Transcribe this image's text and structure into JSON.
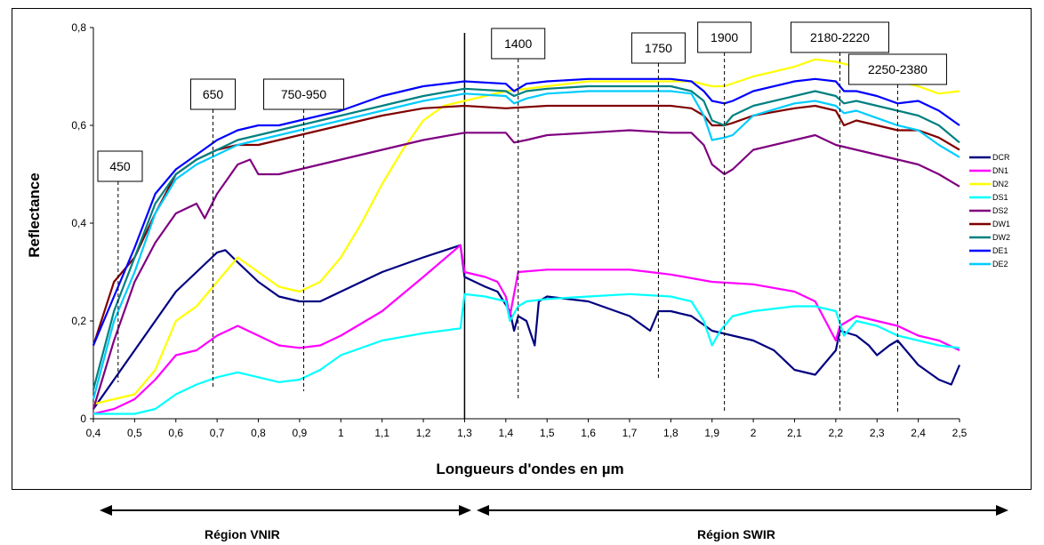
{
  "chart_data": {
    "type": "line",
    "xlabel": "Longueurs d'ondes en µm",
    "ylabel": "Reflectance",
    "xlim": [
      0.4,
      2.5
    ],
    "ylim": [
      0,
      0.8
    ],
    "x_ticks": [
      "0,4",
      "0,5",
      "0,6",
      "0,7",
      "0,8",
      "0,9",
      "1",
      "1,1",
      "1,2",
      "1,3",
      "1,4",
      "1,5",
      "1,6",
      "1,7",
      "1,8",
      "1,9",
      "2",
      "2,1",
      "2,2",
      "2,3",
      "2,4",
      "2,5"
    ],
    "y_ticks": [
      "0",
      "0,2",
      "0,4",
      "0,6",
      "0,8"
    ],
    "grid": false,
    "legend_position": "right",
    "annotations": [
      {
        "label": "450",
        "x": 0.46
      },
      {
        "label": "650",
        "x": 0.69
      },
      {
        "label": "750-950",
        "x": 0.91
      },
      {
        "label": "1400",
        "x": 1.43
      },
      {
        "label": "1750",
        "x": 1.77
      },
      {
        "label": "1900",
        "x": 1.93
      },
      {
        "label": "2180-2220",
        "x": 2.21
      },
      {
        "label": "2250-2380",
        "x": 2.35
      }
    ],
    "divider_x": 1.3,
    "series": [
      {
        "name": "DCR",
        "color": "#000080",
        "x": [
          0.4,
          0.45,
          0.5,
          0.55,
          0.6,
          0.65,
          0.7,
          0.72,
          0.75,
          0.8,
          0.85,
          0.9,
          0.95,
          1.0,
          1.1,
          1.2,
          1.29,
          1.3,
          1.35,
          1.38,
          1.41,
          1.42,
          1.43,
          1.45,
          1.47,
          1.48,
          1.5,
          1.6,
          1.7,
          1.75,
          1.77,
          1.8,
          1.85,
          1.9,
          1.95,
          2.0,
          2.05,
          2.1,
          2.15,
          2.2,
          2.21,
          2.25,
          2.28,
          2.3,
          2.33,
          2.35,
          2.4,
          2.45,
          2.48,
          2.5
        ],
        "y": [
          0.02,
          0.08,
          0.14,
          0.2,
          0.26,
          0.3,
          0.34,
          0.345,
          0.32,
          0.28,
          0.25,
          0.24,
          0.24,
          0.26,
          0.3,
          0.33,
          0.355,
          0.29,
          0.27,
          0.26,
          0.22,
          0.18,
          0.21,
          0.2,
          0.15,
          0.24,
          0.25,
          0.24,
          0.21,
          0.18,
          0.22,
          0.22,
          0.21,
          0.18,
          0.17,
          0.16,
          0.14,
          0.1,
          0.09,
          0.14,
          0.18,
          0.17,
          0.15,
          0.13,
          0.15,
          0.16,
          0.11,
          0.08,
          0.07,
          0.11
        ]
      },
      {
        "name": "DN1",
        "color": "#ff00ff",
        "x": [
          0.4,
          0.45,
          0.5,
          0.55,
          0.6,
          0.65,
          0.7,
          0.75,
          0.8,
          0.85,
          0.9,
          0.95,
          1.0,
          1.1,
          1.2,
          1.29,
          1.3,
          1.35,
          1.38,
          1.4,
          1.41,
          1.43,
          1.5,
          1.6,
          1.7,
          1.75,
          1.8,
          1.9,
          2.0,
          2.1,
          2.15,
          2.2,
          2.21,
          2.25,
          2.3,
          2.35,
          2.4,
          2.45,
          2.5
        ],
        "y": [
          0.01,
          0.02,
          0.04,
          0.08,
          0.13,
          0.14,
          0.17,
          0.19,
          0.17,
          0.15,
          0.145,
          0.15,
          0.17,
          0.22,
          0.29,
          0.355,
          0.3,
          0.29,
          0.28,
          0.25,
          0.21,
          0.3,
          0.305,
          0.305,
          0.305,
          0.3,
          0.295,
          0.28,
          0.275,
          0.26,
          0.24,
          0.16,
          0.19,
          0.21,
          0.2,
          0.19,
          0.17,
          0.16,
          0.14
        ]
      },
      {
        "name": "DN2",
        "color": "#ffff00",
        "x": [
          0.4,
          0.45,
          0.5,
          0.55,
          0.6,
          0.65,
          0.7,
          0.75,
          0.8,
          0.85,
          0.9,
          0.95,
          1.0,
          1.05,
          1.1,
          1.15,
          1.2,
          1.25,
          1.3,
          1.35,
          1.4,
          1.5,
          1.6,
          1.7,
          1.8,
          1.85,
          1.9,
          1.93,
          2.0,
          2.1,
          2.15,
          2.2,
          2.25,
          2.3,
          2.35,
          2.4,
          2.45,
          2.5
        ],
        "y": [
          0.03,
          0.04,
          0.05,
          0.1,
          0.2,
          0.23,
          0.28,
          0.33,
          0.3,
          0.27,
          0.26,
          0.28,
          0.33,
          0.4,
          0.48,
          0.55,
          0.61,
          0.64,
          0.65,
          0.66,
          0.67,
          0.68,
          0.69,
          0.69,
          0.69,
          0.69,
          0.68,
          0.68,
          0.7,
          0.72,
          0.735,
          0.73,
          0.72,
          0.71,
          0.69,
          0.68,
          0.665,
          0.67
        ]
      },
      {
        "name": "DS1",
        "color": "#00ffff",
        "x": [
          0.4,
          0.45,
          0.5,
          0.55,
          0.6,
          0.65,
          0.7,
          0.75,
          0.8,
          0.85,
          0.9,
          0.95,
          1.0,
          1.1,
          1.2,
          1.29,
          1.3,
          1.35,
          1.4,
          1.41,
          1.43,
          1.45,
          1.5,
          1.6,
          1.7,
          1.8,
          1.85,
          1.88,
          1.9,
          1.92,
          1.95,
          2.0,
          2.1,
          2.15,
          2.2,
          2.22,
          2.25,
          2.3,
          2.35,
          2.4,
          2.45,
          2.5
        ],
        "y": [
          0.01,
          0.01,
          0.01,
          0.02,
          0.05,
          0.07,
          0.085,
          0.095,
          0.085,
          0.075,
          0.08,
          0.1,
          0.13,
          0.16,
          0.175,
          0.185,
          0.255,
          0.25,
          0.24,
          0.2,
          0.23,
          0.24,
          0.245,
          0.25,
          0.255,
          0.25,
          0.24,
          0.2,
          0.15,
          0.18,
          0.21,
          0.22,
          0.23,
          0.23,
          0.22,
          0.17,
          0.2,
          0.19,
          0.17,
          0.16,
          0.15,
          0.145
        ]
      },
      {
        "name": "DS2",
        "color": "#800080",
        "x": [
          0.4,
          0.45,
          0.5,
          0.55,
          0.6,
          0.65,
          0.67,
          0.7,
          0.75,
          0.78,
          0.8,
          0.85,
          0.9,
          1.0,
          1.1,
          1.2,
          1.3,
          1.35,
          1.4,
          1.42,
          1.45,
          1.5,
          1.6,
          1.7,
          1.8,
          1.85,
          1.88,
          1.9,
          1.93,
          1.95,
          2.0,
          2.1,
          2.15,
          2.2,
          2.25,
          2.3,
          2.35,
          2.4,
          2.45,
          2.5
        ],
        "y": [
          0.02,
          0.16,
          0.28,
          0.36,
          0.42,
          0.44,
          0.41,
          0.46,
          0.52,
          0.53,
          0.5,
          0.5,
          0.51,
          0.53,
          0.55,
          0.57,
          0.585,
          0.585,
          0.585,
          0.565,
          0.57,
          0.58,
          0.585,
          0.59,
          0.585,
          0.585,
          0.56,
          0.52,
          0.5,
          0.51,
          0.55,
          0.57,
          0.58,
          0.56,
          0.55,
          0.54,
          0.53,
          0.52,
          0.5,
          0.475
        ]
      },
      {
        "name": "DW1",
        "color": "#800000",
        "x": [
          0.4,
          0.45,
          0.5,
          0.55,
          0.6,
          0.65,
          0.7,
          0.75,
          0.8,
          0.85,
          0.9,
          1.0,
          1.1,
          1.2,
          1.3,
          1.4,
          1.5,
          1.6,
          1.7,
          1.8,
          1.85,
          1.88,
          1.9,
          1.93,
          1.95,
          2.0,
          2.1,
          2.15,
          2.2,
          2.22,
          2.25,
          2.3,
          2.35,
          2.4,
          2.45,
          2.5
        ],
        "y": [
          0.15,
          0.28,
          0.33,
          0.42,
          0.5,
          0.53,
          0.55,
          0.56,
          0.56,
          0.57,
          0.58,
          0.6,
          0.62,
          0.635,
          0.64,
          0.635,
          0.64,
          0.64,
          0.64,
          0.64,
          0.635,
          0.62,
          0.6,
          0.6,
          0.605,
          0.62,
          0.635,
          0.64,
          0.63,
          0.6,
          0.61,
          0.6,
          0.59,
          0.59,
          0.575,
          0.55
        ]
      },
      {
        "name": "DW2",
        "color": "#008080",
        "x": [
          0.4,
          0.45,
          0.5,
          0.55,
          0.6,
          0.65,
          0.7,
          0.75,
          0.8,
          0.85,
          0.9,
          1.0,
          1.1,
          1.2,
          1.3,
          1.4,
          1.42,
          1.45,
          1.5,
          1.6,
          1.7,
          1.8,
          1.85,
          1.88,
          1.9,
          1.93,
          1.95,
          2.0,
          2.1,
          2.15,
          2.2,
          2.22,
          2.25,
          2.3,
          2.35,
          2.4,
          2.45,
          2.5
        ],
        "y": [
          0.06,
          0.22,
          0.33,
          0.44,
          0.5,
          0.53,
          0.55,
          0.57,
          0.58,
          0.59,
          0.6,
          0.62,
          0.64,
          0.66,
          0.675,
          0.67,
          0.66,
          0.67,
          0.675,
          0.68,
          0.68,
          0.68,
          0.67,
          0.65,
          0.61,
          0.6,
          0.62,
          0.64,
          0.66,
          0.67,
          0.66,
          0.645,
          0.65,
          0.64,
          0.63,
          0.62,
          0.6,
          0.565
        ]
      },
      {
        "name": "DE1",
        "color": "#0000ff",
        "x": [
          0.4,
          0.45,
          0.5,
          0.55,
          0.6,
          0.65,
          0.7,
          0.75,
          0.8,
          0.85,
          0.9,
          1.0,
          1.1,
          1.2,
          1.3,
          1.4,
          1.42,
          1.45,
          1.5,
          1.6,
          1.7,
          1.8,
          1.85,
          1.88,
          1.9,
          1.93,
          1.95,
          2.0,
          2.1,
          2.15,
          2.2,
          2.22,
          2.25,
          2.3,
          2.35,
          2.4,
          2.45,
          2.5
        ],
        "y": [
          0.15,
          0.25,
          0.35,
          0.46,
          0.51,
          0.54,
          0.57,
          0.59,
          0.6,
          0.6,
          0.61,
          0.63,
          0.66,
          0.68,
          0.69,
          0.685,
          0.67,
          0.685,
          0.69,
          0.695,
          0.695,
          0.695,
          0.69,
          0.67,
          0.65,
          0.645,
          0.65,
          0.67,
          0.69,
          0.695,
          0.69,
          0.67,
          0.67,
          0.66,
          0.645,
          0.65,
          0.63,
          0.6
        ]
      },
      {
        "name": "DE2",
        "color": "#00ccff",
        "x": [
          0.4,
          0.45,
          0.5,
          0.55,
          0.6,
          0.65,
          0.7,
          0.75,
          0.8,
          0.85,
          0.9,
          1.0,
          1.1,
          1.2,
          1.3,
          1.4,
          1.42,
          1.45,
          1.5,
          1.6,
          1.7,
          1.8,
          1.85,
          1.88,
          1.9,
          1.93,
          1.95,
          2.0,
          2.1,
          2.15,
          2.2,
          2.22,
          2.25,
          2.3,
          2.35,
          2.4,
          2.45,
          2.5
        ],
        "y": [
          0.04,
          0.2,
          0.3,
          0.42,
          0.49,
          0.52,
          0.54,
          0.56,
          0.57,
          0.58,
          0.59,
          0.61,
          0.63,
          0.65,
          0.665,
          0.66,
          0.645,
          0.655,
          0.665,
          0.67,
          0.67,
          0.67,
          0.665,
          0.62,
          0.57,
          0.575,
          0.58,
          0.62,
          0.645,
          0.65,
          0.64,
          0.625,
          0.63,
          0.615,
          0.6,
          0.59,
          0.56,
          0.535
        ]
      }
    ],
    "regions": [
      {
        "label": "Région VNIR",
        "x_range": [
          0.4,
          1.3
        ]
      },
      {
        "label": "Région SWIR",
        "x_range": [
          1.3,
          2.5
        ]
      }
    ]
  }
}
